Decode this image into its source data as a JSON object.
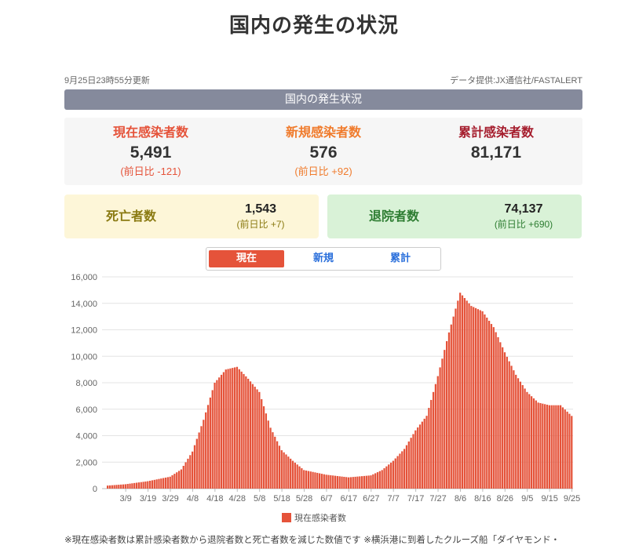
{
  "page": {
    "title": "国内の発生の状況",
    "updated": "9月25日23時55分更新",
    "source": "データ提供:JX通信社/FASTALERT",
    "section_title": "国内の発生状況"
  },
  "summary": {
    "current": {
      "label": "現在感染者数",
      "value": "5,491",
      "diff": "(前日比 -121)",
      "color": "#e5533a"
    },
    "new": {
      "label": "新規感染者数",
      "value": "576",
      "diff": "(前日比 +92)",
      "color": "#f07b2c"
    },
    "total": {
      "label": "累計感染者数",
      "value": "81,171",
      "color": "#a51d2d"
    }
  },
  "deaths": {
    "label": "死亡者数",
    "value": "1,543",
    "diff": "(前日比 +7)",
    "color": "#8a7a12"
  },
  "recovered": {
    "label": "退院者数",
    "value": "74,137",
    "diff": "(前日比 +690)",
    "color": "#2e7d32"
  },
  "tabs": [
    {
      "label": "現在",
      "active": true
    },
    {
      "label": "新規",
      "active": false
    },
    {
      "label": "累計",
      "active": false
    }
  ],
  "legend": {
    "label": "現在感染者数"
  },
  "footnote": "※現在感染者数は累計感染者数から退院者数と死亡者数を減じた数値です ※横浜港に到着したクルーズ船「ダイヤモンド・",
  "chart_data": {
    "type": "bar",
    "series": [
      {
        "name": "現在感染者数",
        "color": "#e5533a"
      }
    ],
    "ylim": [
      0,
      16000
    ],
    "yticks": [
      "0",
      "2,000",
      "4,000",
      "6,000",
      "8,000",
      "10,000",
      "12,000",
      "14,000",
      "16,000"
    ],
    "xticks": [
      "3/9",
      "3/19",
      "3/29",
      "4/8",
      "4/18",
      "4/28",
      "5/8",
      "5/18",
      "5/28",
      "6/7",
      "6/17",
      "6/27",
      "7/7",
      "7/17",
      "7/27",
      "8/6",
      "8/16",
      "8/26",
      "9/5",
      "9/15",
      "9/25"
    ],
    "grid": true,
    "legend_position": "bottom",
    "keyframes": [
      [
        "3/1",
        230
      ],
      [
        "3/9",
        330
      ],
      [
        "3/19",
        560
      ],
      [
        "3/29",
        900
      ],
      [
        "4/3",
        1450
      ],
      [
        "4/8",
        2800
      ],
      [
        "4/13",
        5200
      ],
      [
        "4/18",
        8000
      ],
      [
        "4/23",
        9000
      ],
      [
        "4/28",
        9200
      ],
      [
        "5/3",
        8300
      ],
      [
        "5/8",
        7300
      ],
      [
        "5/13",
        4600
      ],
      [
        "5/18",
        2900
      ],
      [
        "5/23",
        2100
      ],
      [
        "5/28",
        1400
      ],
      [
        "6/7",
        1050
      ],
      [
        "6/17",
        850
      ],
      [
        "6/27",
        1000
      ],
      [
        "7/2",
        1400
      ],
      [
        "7/7",
        2100
      ],
      [
        "7/12",
        3000
      ],
      [
        "7/17",
        4400
      ],
      [
        "7/22",
        5500
      ],
      [
        "7/27",
        8500
      ],
      [
        "8/1",
        11800
      ],
      [
        "8/6",
        14800
      ],
      [
        "8/11",
        13800
      ],
      [
        "8/16",
        13400
      ],
      [
        "8/21",
        12200
      ],
      [
        "8/26",
        10300
      ],
      [
        "8/31",
        8600
      ],
      [
        "9/5",
        7300
      ],
      [
        "9/10",
        6500
      ],
      [
        "9/15",
        6300
      ],
      [
        "9/20",
        6300
      ],
      [
        "9/25",
        5491
      ]
    ]
  }
}
